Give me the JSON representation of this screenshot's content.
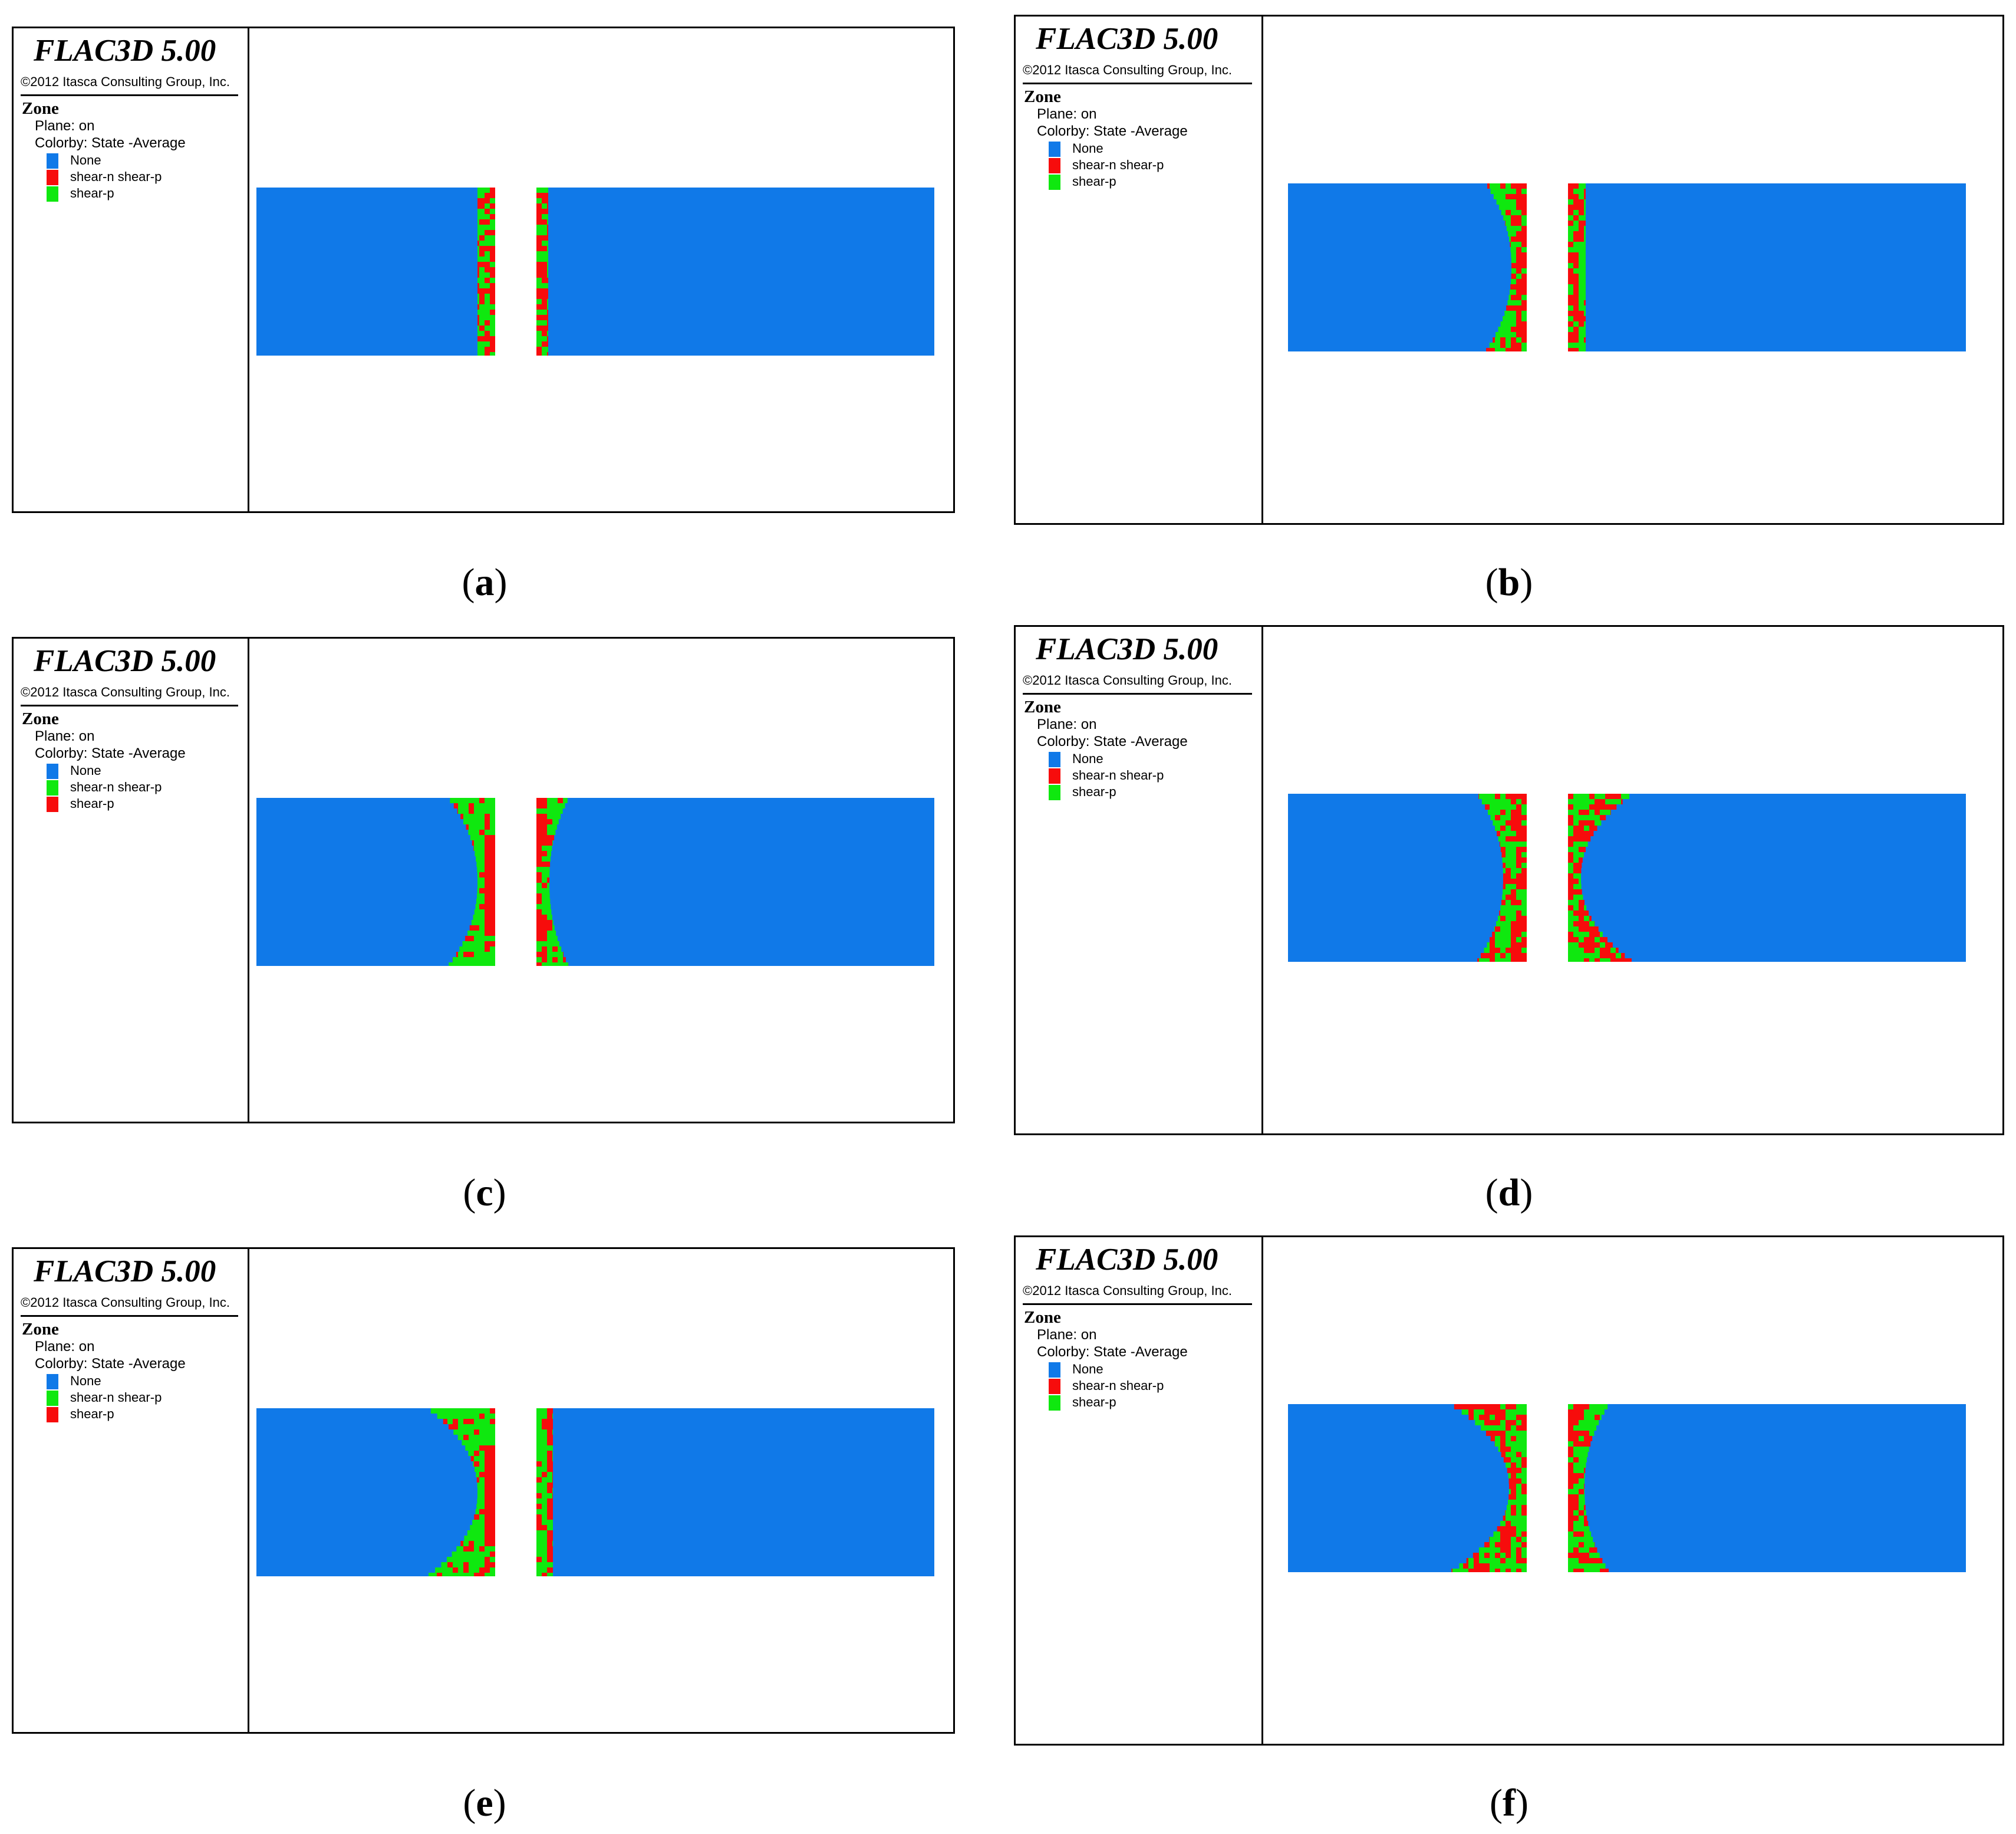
{
  "colors": {
    "None": "#1079e8",
    "red": "#f70c0c",
    "green": "#0fe80f"
  },
  "panels": [
    {
      "id": "a",
      "caption": "(a)",
      "caption_letter": "a",
      "app_title": "FLAC3D 5.00",
      "copyright": "©2012 Itasca Consulting Group, Inc.",
      "zone_heading": "Zone",
      "plane": "Plane: on",
      "colorby": "Colorby: State  -Average",
      "legend": [
        {
          "label": "None",
          "color": "#1079e8"
        },
        {
          "label": "shear-n shear-p",
          "color": "#f70c0c"
        },
        {
          "label": "shear-p",
          "color": "#0fe80f"
        }
      ]
    },
    {
      "id": "b",
      "caption": "(b)",
      "caption_letter": "b",
      "app_title": "FLAC3D 5.00",
      "copyright": "©2012 Itasca Consulting Group, Inc.",
      "zone_heading": "Zone",
      "plane": "Plane: on",
      "colorby": "Colorby: State  -Average",
      "legend": [
        {
          "label": "None",
          "color": "#1079e8"
        },
        {
          "label": "shear-n shear-p",
          "color": "#f70c0c"
        },
        {
          "label": "shear-p",
          "color": "#0fe80f"
        }
      ]
    },
    {
      "id": "c",
      "caption": "(c)",
      "caption_letter": "c",
      "app_title": "FLAC3D 5.00",
      "copyright": "©2012 Itasca Consulting Group, Inc.",
      "zone_heading": "Zone",
      "plane": "Plane: on",
      "colorby": "Colorby: State  -Average",
      "legend": [
        {
          "label": "None",
          "color": "#1079e8"
        },
        {
          "label": "shear-n shear-p",
          "color": "#0fe80f"
        },
        {
          "label": "shear-p",
          "color": "#f70c0c"
        }
      ]
    },
    {
      "id": "d",
      "caption": "(d)",
      "caption_letter": "d",
      "app_title": "FLAC3D 5.00",
      "copyright": "©2012 Itasca Consulting Group, Inc.",
      "zone_heading": "Zone",
      "plane": "Plane: on",
      "colorby": "Colorby: State  -Average",
      "legend": [
        {
          "label": "None",
          "color": "#1079e8"
        },
        {
          "label": "shear-n shear-p",
          "color": "#f70c0c"
        },
        {
          "label": "shear-p",
          "color": "#0fe80f"
        }
      ]
    },
    {
      "id": "e",
      "caption": "(e)",
      "caption_letter": "e",
      "app_title": "FLAC3D 5.00",
      "copyright": "©2012 Itasca Consulting Group, Inc.",
      "zone_heading": "Zone",
      "plane": "Plane: on",
      "colorby": "Colorby: State  -Average",
      "legend": [
        {
          "label": "None",
          "color": "#1079e8"
        },
        {
          "label": "shear-n shear-p",
          "color": "#0fe80f"
        },
        {
          "label": "shear-p",
          "color": "#f70c0c"
        }
      ]
    },
    {
      "id": "f",
      "caption": "(f)",
      "caption_letter": "f",
      "app_title": "FLAC3D 5.00",
      "copyright": "©2012 Itasca Consulting Group, Inc.",
      "zone_heading": "Zone",
      "plane": "Plane: on",
      "colorby": "Colorby: State  -Average",
      "legend": [
        {
          "label": "None",
          "color": "#1079e8"
        },
        {
          "label": "shear-n shear-p",
          "color": "#f70c0c"
        },
        {
          "label": "shear-p",
          "color": "#0fe80f"
        }
      ]
    }
  ]
}
